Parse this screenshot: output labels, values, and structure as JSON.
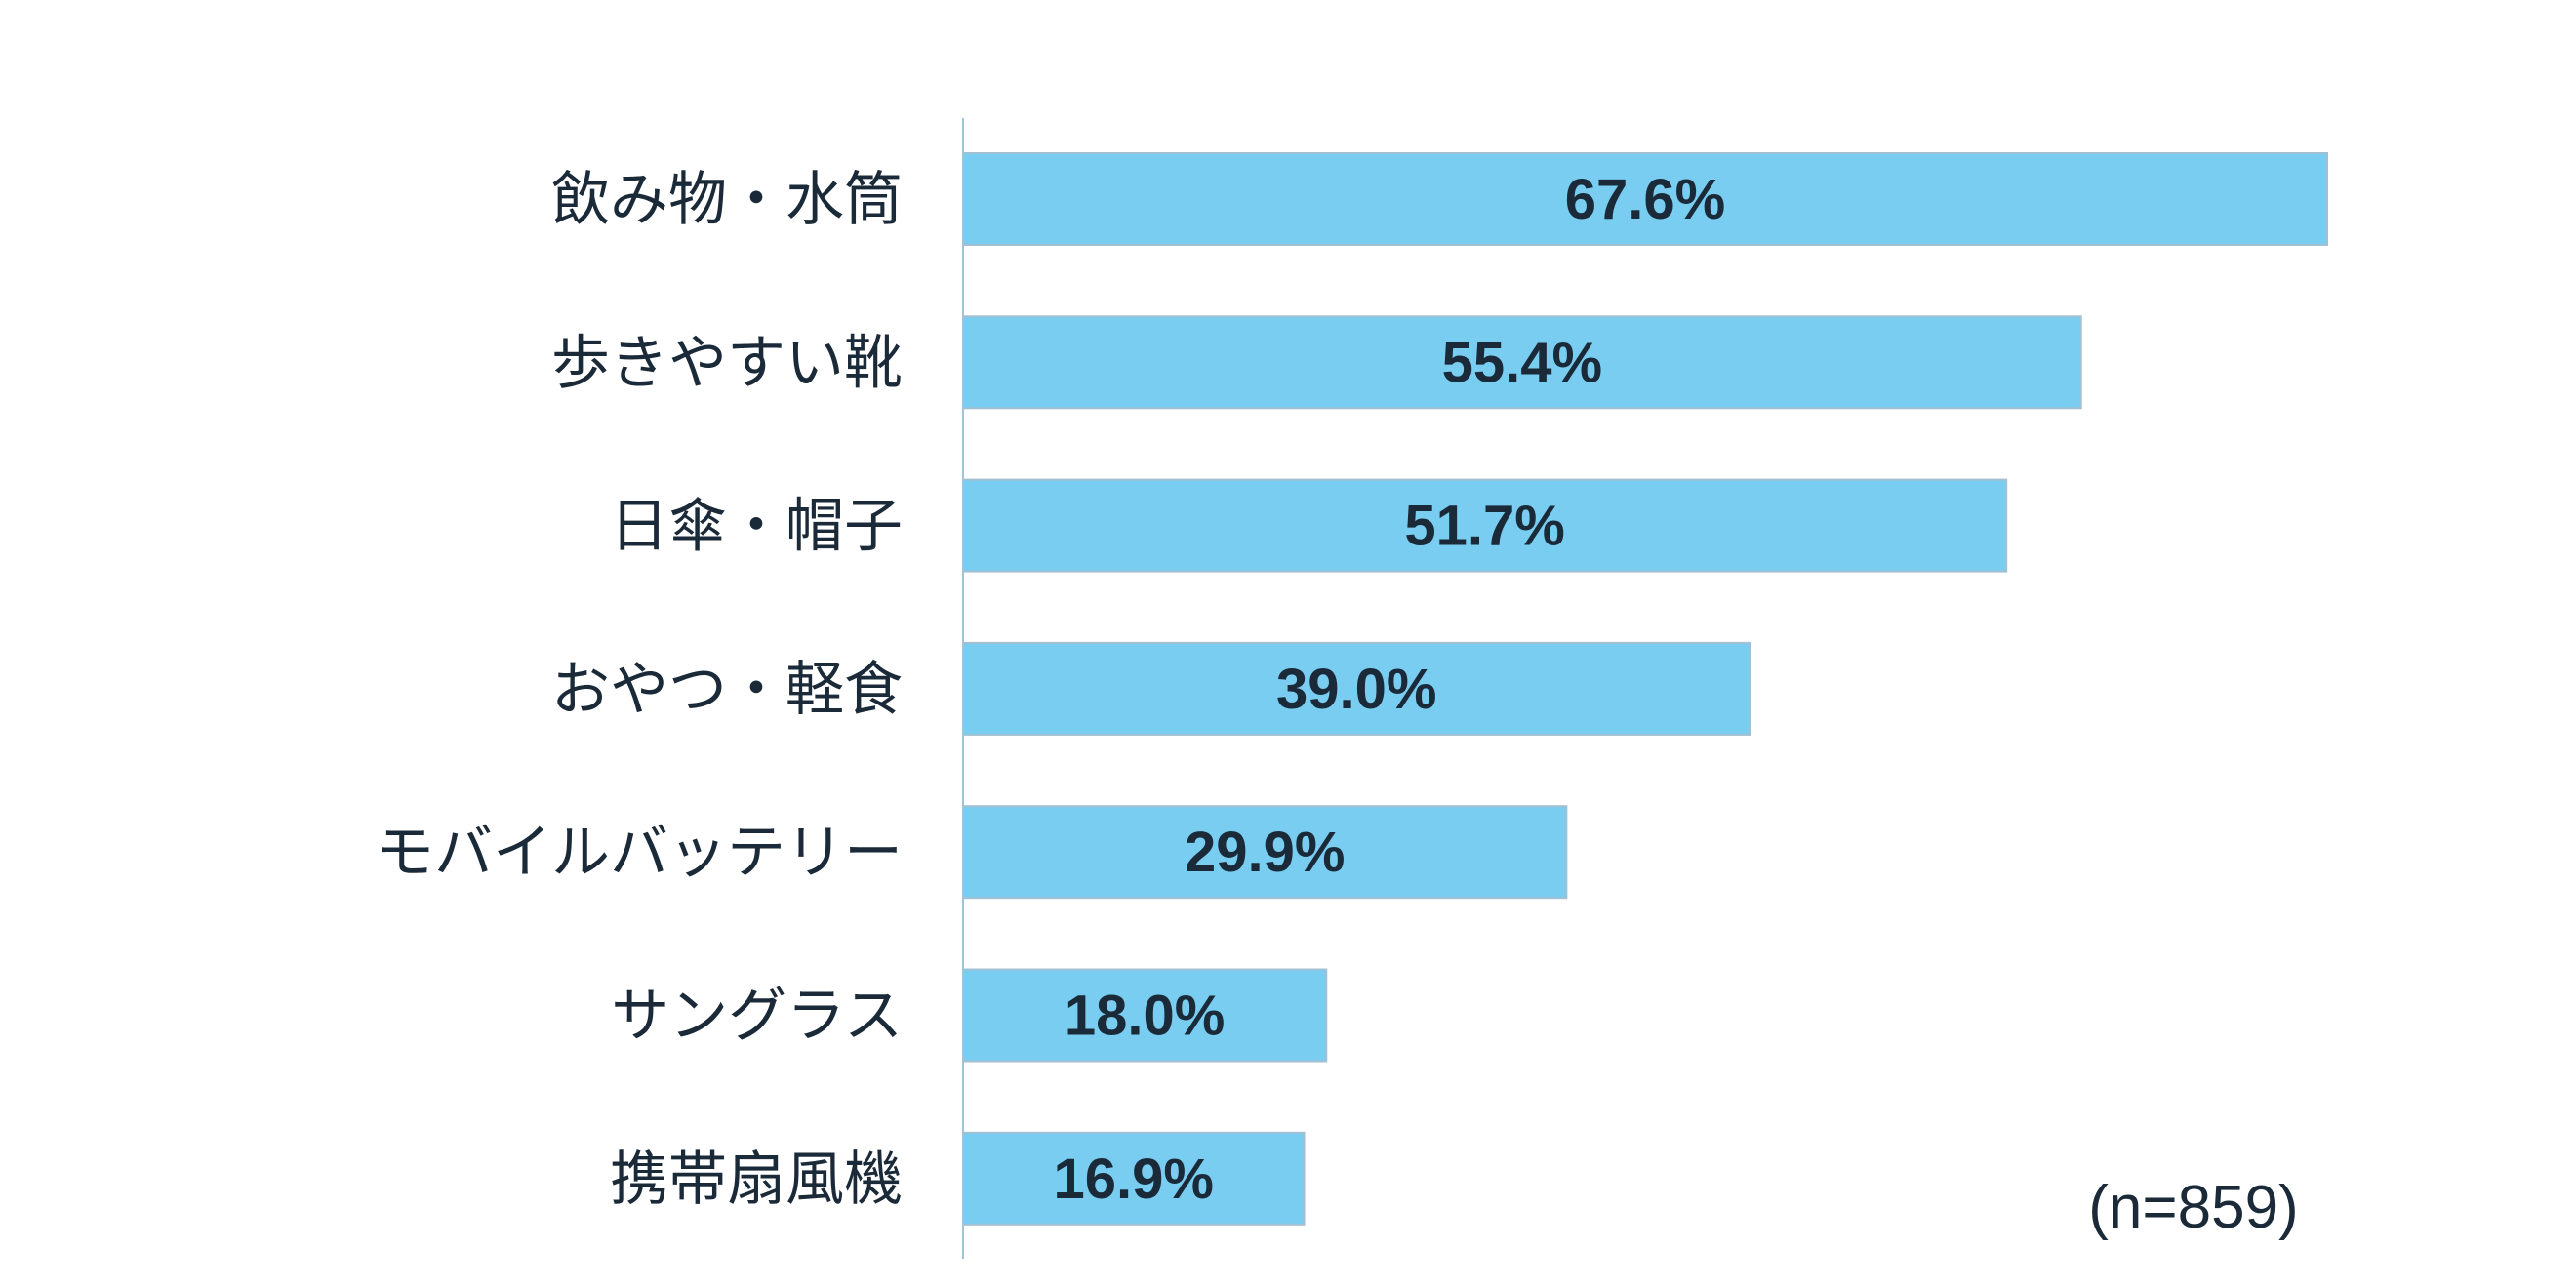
{
  "chart_data": {
    "type": "bar",
    "orientation": "horizontal",
    "categories": [
      "飲み物・水筒",
      "歩きやすい靴",
      "日傘・帽子",
      "おやつ・軽食",
      "モバイルバッテリー",
      "サングラス",
      "携帯扇風機"
    ],
    "values": [
      67.6,
      55.4,
      51.7,
      39.0,
      29.9,
      18.0,
      16.9
    ],
    "data_labels": [
      "67.6%",
      "55.4%",
      "51.7%",
      "39.0%",
      "29.9%",
      "18.0%",
      "16.9%"
    ],
    "unit": "%",
    "xlim": [
      0,
      67.6
    ],
    "grid": false,
    "legend": "none",
    "annotation": "(n=859)",
    "colors": {
      "bar": "#78cdf0",
      "bar_border": "#a3bfd2",
      "axis": "#9ec3da",
      "text": "#1b2a38"
    }
  }
}
